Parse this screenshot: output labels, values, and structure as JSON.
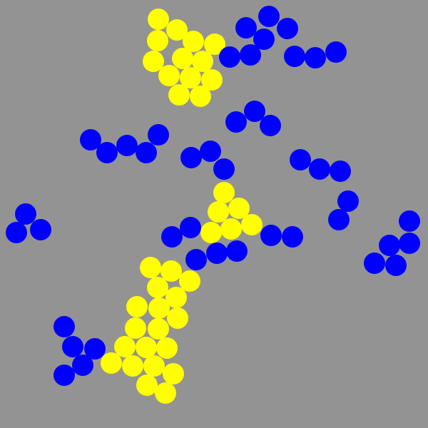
{
  "colors": {
    "background": "#939393",
    "yellow": "#ffff00",
    "blue": "#0000ff"
  },
  "pieces": {
    "yellow": [],
    "blue": []
  }
}
